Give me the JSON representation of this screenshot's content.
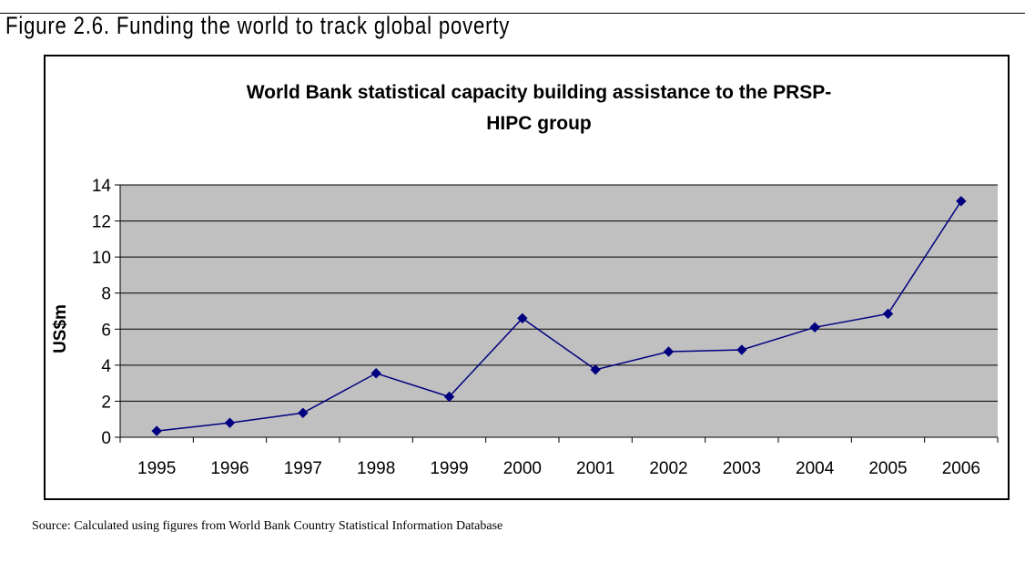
{
  "figure": {
    "heading": "Figure 2.6. Funding the world to track global poverty",
    "source": "Source: Calculated using figures from World Bank Country Statistical Information Database"
  },
  "chart_data": {
    "type": "line",
    "title_lines": [
      "World Bank statistical capacity building assistance to the PRSP-",
      "HIPC group"
    ],
    "xlabel": "",
    "ylabel": "US$m",
    "categories": [
      "1995",
      "1996",
      "1997",
      "1998",
      "1999",
      "2000",
      "2001",
      "2002",
      "2003",
      "2004",
      "2005",
      "2006"
    ],
    "series": [
      {
        "values": [
          0.35,
          0.8,
          1.35,
          3.55,
          2.25,
          6.6,
          3.75,
          4.75,
          4.85,
          6.1,
          6.85,
          13.1
        ],
        "color": "#000080",
        "marker": "diamond"
      }
    ],
    "ylim": [
      0,
      14
    ],
    "yticks": [
      0,
      2,
      4,
      6,
      8,
      10,
      12,
      14
    ],
    "grid": true,
    "legend": "none",
    "plot_background": "#c0c0c0"
  }
}
